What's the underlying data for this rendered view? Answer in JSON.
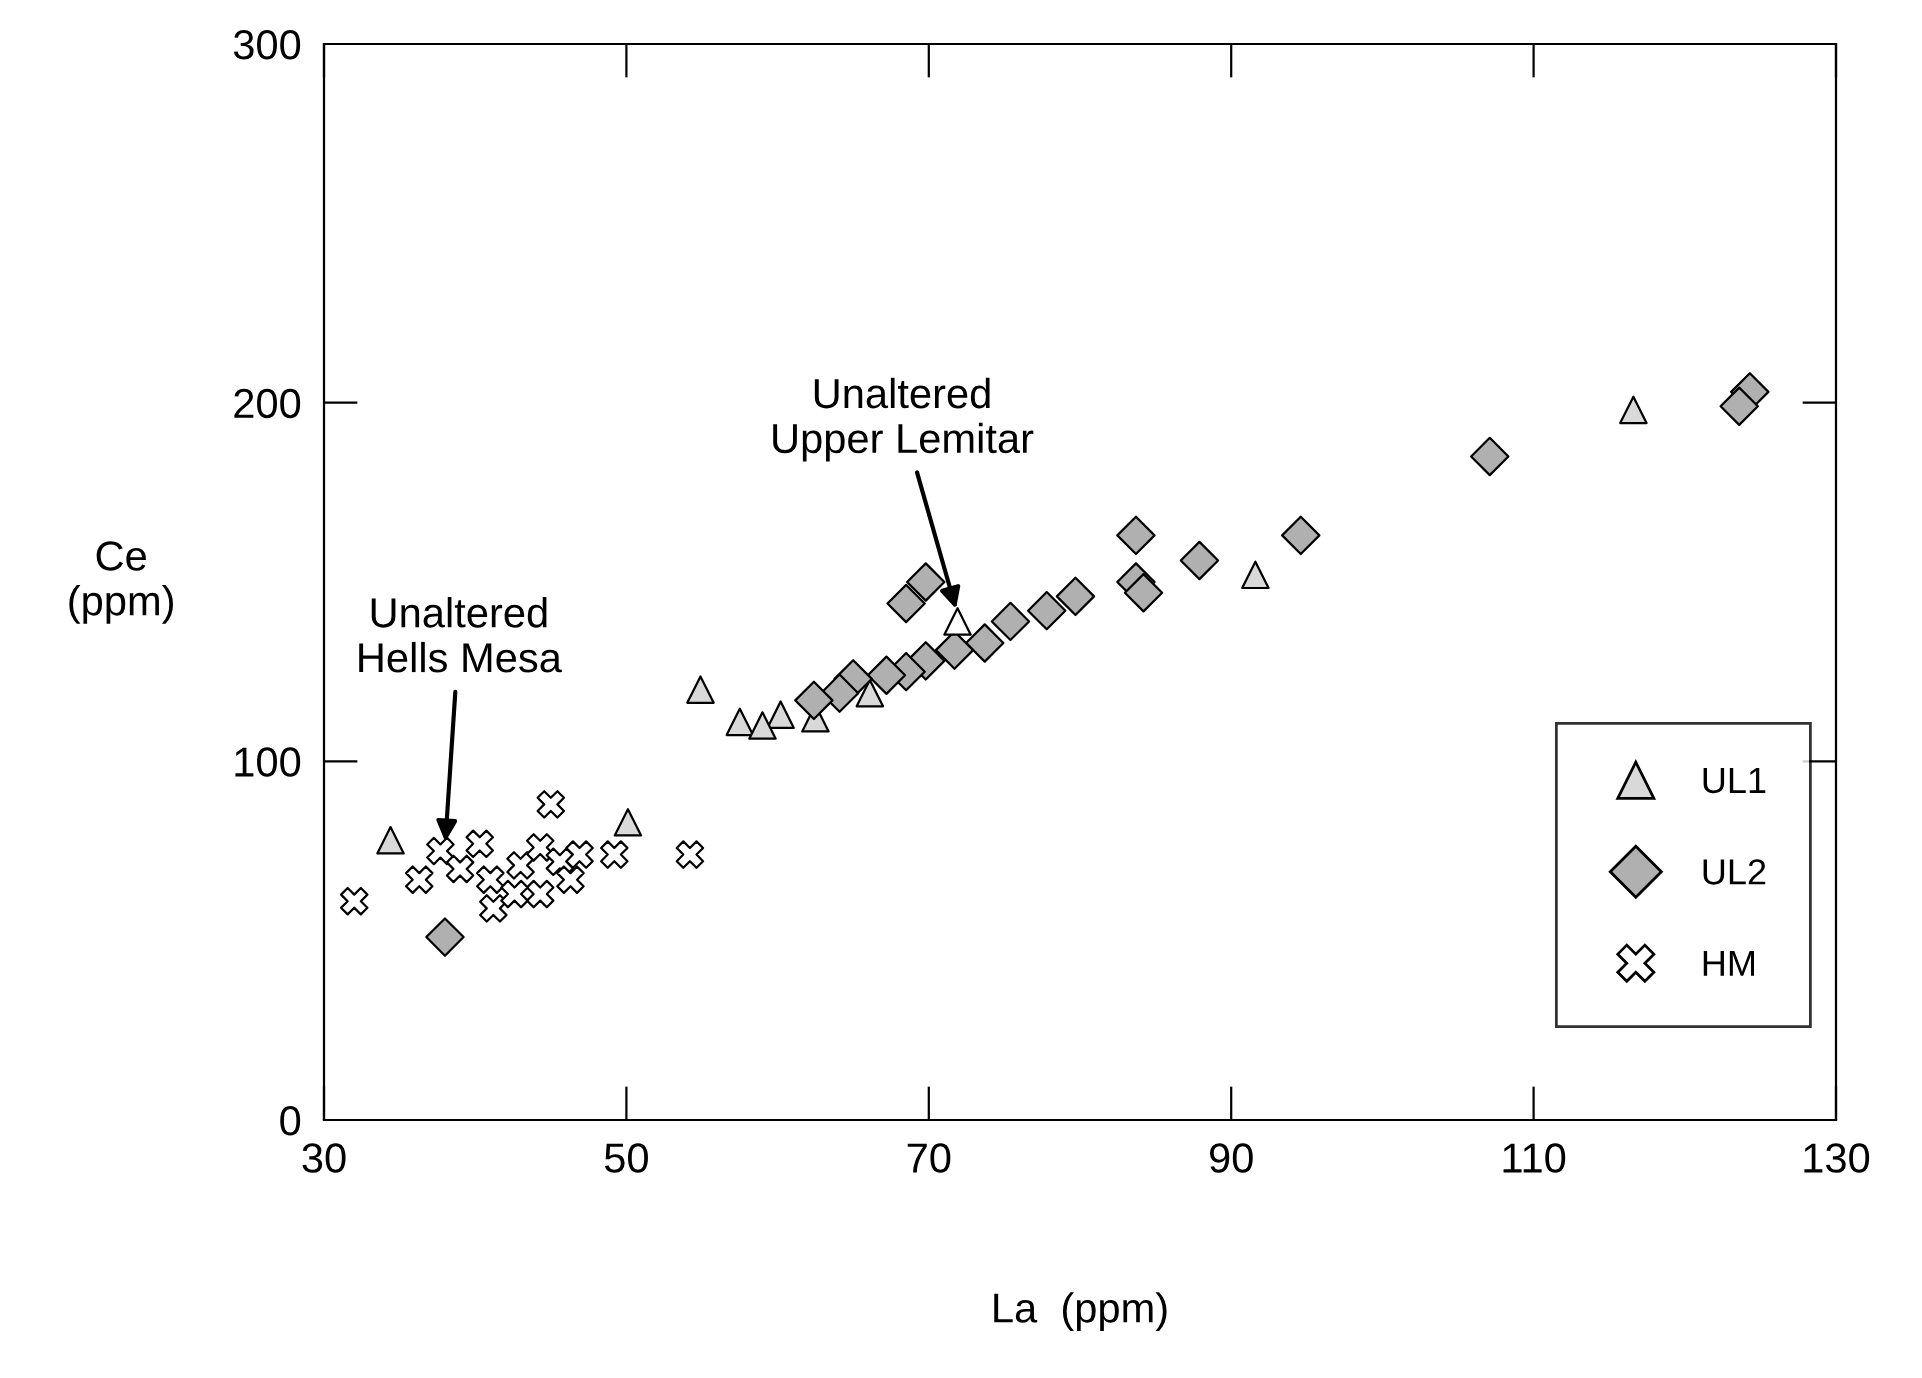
{
  "chart_data": {
    "type": "scatter",
    "xlabel": "La  (ppm)",
    "ylabel": "Ce\n(ppm)",
    "xlim": [
      30,
      130
    ],
    "ylim": [
      0,
      300
    ],
    "xticks": [
      30,
      50,
      70,
      90,
      110,
      130
    ],
    "yticks": [
      0,
      100,
      200,
      300
    ],
    "grid": false,
    "legend": "bottom right",
    "series": [
      {
        "name": "UL1",
        "color": "#d9d9d9",
        "marker": "triangle",
        "x": [
          34.4,
          50.1,
          54.9,
          57.5,
          60.2,
          62.5,
          59.0,
          66.1,
          91.6,
          116.6
        ],
        "values": [
          78,
          83,
          120,
          111,
          113,
          112,
          110,
          119,
          152,
          198
        ]
      },
      {
        "name": "UL2",
        "color": "#b0b0b0",
        "marker": "diamond",
        "x": [
          38,
          69.8,
          68.5,
          83.7,
          83.7,
          79.7,
          77.8,
          75.4,
          73.7,
          71.7,
          69.8,
          68.5,
          67.2,
          65,
          64.1,
          62.4,
          84.2,
          87.9,
          94.6,
          107.1,
          124.3,
          123.6
        ],
        "values": [
          51,
          150,
          144,
          163,
          150,
          146,
          142,
          139,
          133,
          131,
          128,
          125,
          124,
          123,
          119,
          117,
          147,
          156,
          163,
          185,
          203,
          199
        ]
      },
      {
        "name": "HM",
        "color": "#ffffff",
        "marker": "cross",
        "x": [
          32,
          37.7,
          36.3,
          39,
          40.3,
          41,
          43,
          45,
          44.3,
          45.6,
          46.9,
          46.3,
          49.2,
          54.2,
          41.2,
          44.3,
          42.6
        ],
        "values": [
          61,
          75,
          67,
          70,
          77,
          67,
          71,
          88,
          76,
          72,
          74,
          67,
          74,
          74,
          59,
          63,
          63
        ]
      },
      {
        "color": "#ffffff",
        "marker": "triangle",
        "x": [
          71.9
        ],
        "values": [
          139
        ]
      }
    ],
    "annotations": [
      {
        "text": "Unaltered\nUpper Lemitar",
        "x": 71.9,
        "y": 141
      },
      {
        "text": "Unaltered\nHells Mesa",
        "x": 38,
        "y": 76
      }
    ]
  }
}
